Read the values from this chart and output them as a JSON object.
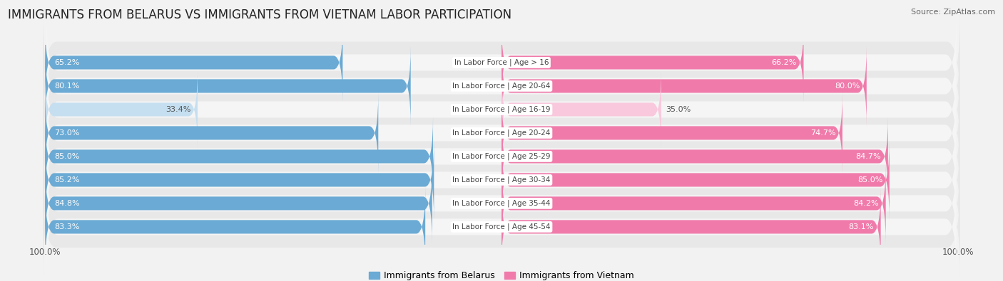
{
  "title": "IMMIGRANTS FROM BELARUS VS IMMIGRANTS FROM VIETNAM LABOR PARTICIPATION",
  "source": "Source: ZipAtlas.com",
  "categories": [
    "In Labor Force | Age > 16",
    "In Labor Force | Age 20-64",
    "In Labor Force | Age 16-19",
    "In Labor Force | Age 20-24",
    "In Labor Force | Age 25-29",
    "In Labor Force | Age 30-34",
    "In Labor Force | Age 35-44",
    "In Labor Force | Age 45-54"
  ],
  "belarus_values": [
    65.2,
    80.1,
    33.4,
    73.0,
    85.0,
    85.2,
    84.8,
    83.3
  ],
  "vietnam_values": [
    66.2,
    80.0,
    35.0,
    74.7,
    84.7,
    85.0,
    84.2,
    83.1
  ],
  "belarus_color": "#6aaad4",
  "vietnam_color": "#f07bab",
  "belarus_light_color": "#c5dff0",
  "vietnam_light_color": "#f9c8dc",
  "row_bg_color": "#e8e8e8",
  "row_inner_color": "#f5f5f5",
  "label_color_white": "#ffffff",
  "label_color_dark": "#555555",
  "legend_belarus": "Immigrants from Belarus",
  "legend_vietnam": "Immigrants from Vietnam",
  "title_fontsize": 12,
  "label_fontsize": 8,
  "cat_fontsize": 7.5,
  "max_value": 100.0,
  "background_color": "#f2f2f2"
}
